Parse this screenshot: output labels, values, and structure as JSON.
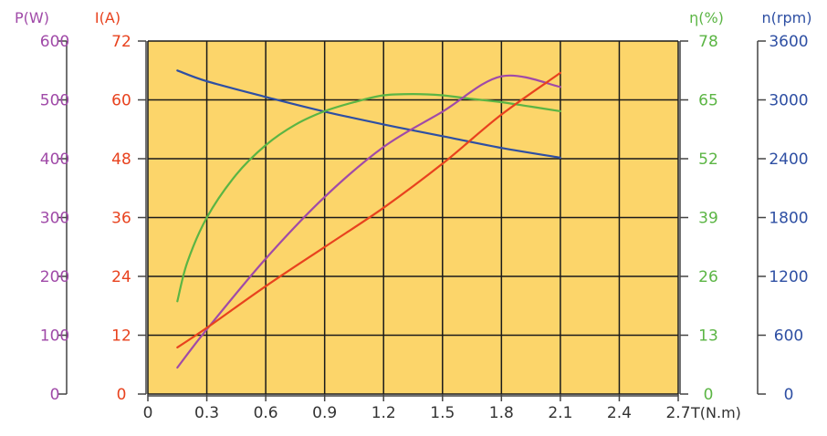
{
  "chart_data": {
    "type": "line",
    "x_axis": {
      "label": "T(N.m)",
      "ticks": [
        "0",
        "0.3",
        "0.6",
        "0.9",
        "1.2",
        "1.5",
        "1.8",
        "2.1",
        "2.4",
        "2.7"
      ],
      "range": [
        0,
        2.7
      ]
    },
    "y_axes": [
      {
        "id": "P",
        "label": "P(W)",
        "ticks": [
          "0",
          "100",
          "200",
          "300",
          "400",
          "500",
          "600"
        ],
        "range": [
          0,
          600
        ],
        "color": "#a04aa8",
        "side": "left-outer"
      },
      {
        "id": "I",
        "label": "I(A)",
        "ticks": [
          "0",
          "12",
          "24",
          "36",
          "48",
          "60",
          "72"
        ],
        "range": [
          0,
          72
        ],
        "color": "#e8421e",
        "side": "left-inner"
      },
      {
        "id": "eta",
        "label": "η(%)",
        "ticks": [
          "0",
          "13",
          "26",
          "39",
          "52",
          "65",
          "78"
        ],
        "range": [
          0,
          78
        ],
        "color": "#5bb544",
        "side": "right-inner"
      },
      {
        "id": "n",
        "label": "n(rpm)",
        "ticks": [
          "0",
          "600",
          "1200",
          "1800",
          "2400",
          "3000",
          "3600"
        ],
        "range": [
          0,
          3600
        ],
        "color": "#2e4fa3",
        "side": "right-outer"
      }
    ],
    "grid": true,
    "colors": {
      "plot_background": "#fcd56a",
      "grid": "#1a1a1a",
      "axis_text": "#333333"
    },
    "series": [
      {
        "axis": "n",
        "color": "#2e4fa3",
        "x": [
          0.15,
          0.3,
          0.6,
          0.9,
          1.2,
          1.5,
          1.8,
          2.1
        ],
        "y": [
          3300,
          3190,
          3030,
          2880,
          2750,
          2630,
          2510,
          2410
        ]
      },
      {
        "axis": "eta",
        "color": "#5bb544",
        "x": [
          0.15,
          0.2,
          0.3,
          0.45,
          0.6,
          0.75,
          0.9,
          1.05,
          1.2,
          1.35,
          1.5,
          1.65,
          1.8,
          1.95,
          2.1
        ],
        "y": [
          20.5,
          29,
          39,
          48.5,
          55,
          59.5,
          62.5,
          64.5,
          66,
          66.3,
          66,
          65.2,
          64.5,
          63.5,
          62.5
        ]
      },
      {
        "axis": "P",
        "color": "#a04aa8",
        "x": [
          0.15,
          0.3,
          0.6,
          0.9,
          1.2,
          1.5,
          1.8,
          2.1
        ],
        "y": [
          45,
          110,
          230,
          335,
          420,
          480,
          540,
          522
        ]
      },
      {
        "axis": "I",
        "color": "#e8421e",
        "x": [
          0.15,
          0.3,
          0.6,
          0.9,
          1.2,
          1.5,
          1.8,
          2.1
        ],
        "y": [
          9.5,
          13.5,
          22,
          30,
          38,
          47,
          57,
          65.5
        ]
      }
    ]
  }
}
